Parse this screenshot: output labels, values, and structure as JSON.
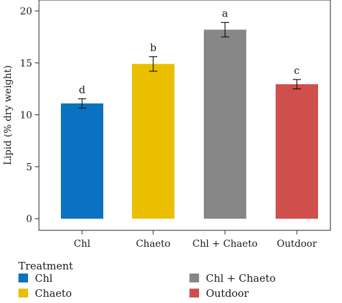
{
  "chart_data": {
    "type": "bar",
    "categories": [
      "Chl",
      "Chaeto",
      "Chl + Chaeto",
      "Outdoor"
    ],
    "values": [
      11.1,
      14.9,
      18.2,
      12.95
    ],
    "errors": [
      0.45,
      0.7,
      0.7,
      0.45
    ],
    "significance_labels": [
      "d",
      "b",
      "a",
      "c"
    ],
    "colors": [
      "#0a72c1",
      "#e9bf00",
      "#878787",
      "#cf4f4d"
    ],
    "ylabel": "Lipid (% dry weight)",
    "xlabel": "",
    "ylim": [
      0,
      20
    ],
    "yticks": [
      0,
      5,
      10,
      15,
      20
    ],
    "grid": false,
    "legend": {
      "title": "Treatment",
      "placement": "bottom",
      "entries": [
        "Chl",
        "Chaeto",
        "Chl + Chaeto",
        "Outdoor"
      ]
    }
  }
}
